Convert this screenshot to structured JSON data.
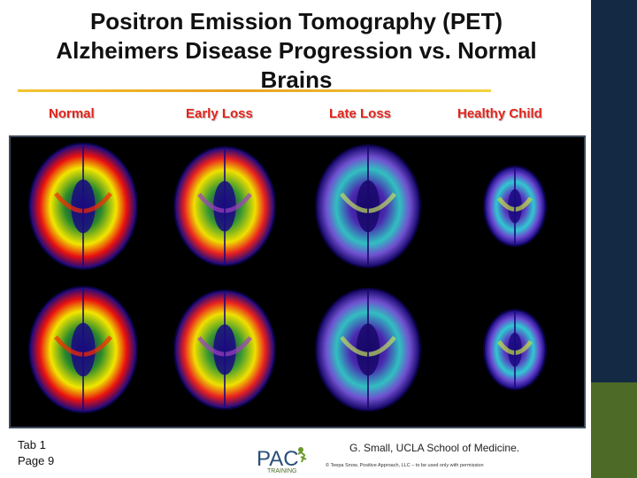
{
  "slide": {
    "title_line1": "Positron Emission Tomography (PET)",
    "title_line2": "Alzheimers Disease Progression vs. Normal",
    "title_line3": "Brains"
  },
  "columns": [
    "Normal",
    "Early Loss",
    "Late Loss",
    "Healthy Child"
  ],
  "footer": {
    "tab": "Tab 1",
    "page": "Page 9",
    "credit": "G. Small, UCLA School of Medicine.",
    "copyright": "© Teepa Snow, Positive Approach, LLC – to be used only with permission",
    "logo_text": "PAC",
    "logo_sub": "TRAINING"
  },
  "colors": {
    "sidebar": "#142a44",
    "sidebar_accent": "#4d6b26",
    "label_red": "#e2231a",
    "underline": "#e8a020"
  }
}
